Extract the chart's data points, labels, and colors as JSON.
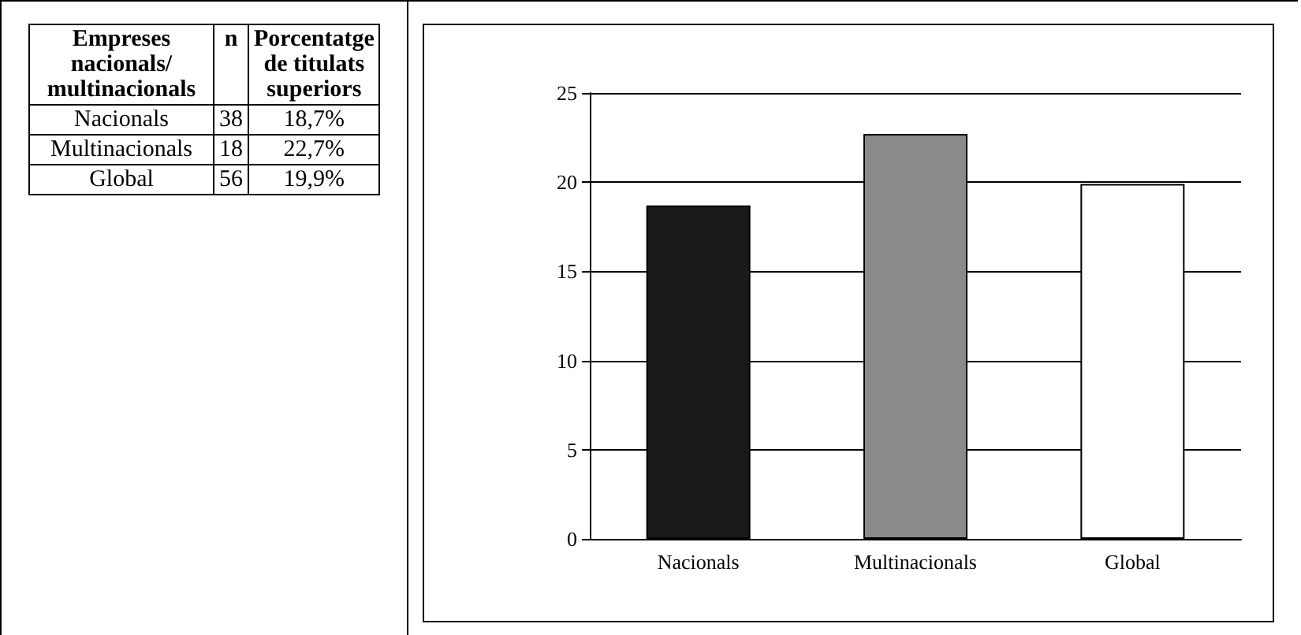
{
  "chart_data": {
    "type": "bar",
    "categories": [
      "Nacionals",
      "Multinacionals",
      "Global"
    ],
    "values": [
      18.7,
      22.7,
      19.9
    ],
    "colors": [
      "#1a1a1a",
      "#8a8a8a",
      "#ffffff"
    ],
    "annotations": [
      "Empreses nacionals/ multinacionals",
      "n",
      "Porcentatge de titulats superiors",
      "38",
      "18,7%",
      "18",
      "22,7%",
      "56",
      "19,9%"
    ],
    "ylim": [
      0,
      25
    ],
    "yticks": [
      0,
      5,
      10,
      15,
      20,
      25
    ],
    "grid": "y"
  }
}
